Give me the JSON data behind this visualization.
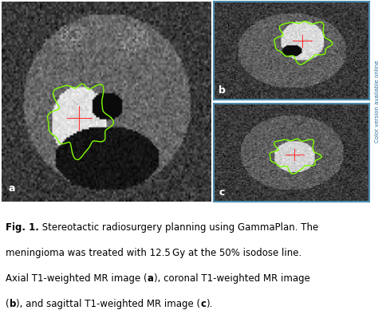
{
  "label_a": "a",
  "label_b": "b",
  "label_c": "c",
  "bg_color": "#ffffff",
  "panel_bg": "#1a1a1a",
  "panel_border_color": "#4a8aab",
  "label_color": "#ffffff",
  "contour_color": "#7fff00",
  "font_size_caption": 8.5,
  "font_size_label": 9,
  "sidebar_text": "Color version available online",
  "sidebar_color": "#2c6e9e",
  "caption_line1": "Fig. 1. Stereotactic radiosurgery planning using GammaPlan. The",
  "caption_line2": "meningioma was treated with 12.5 Gy at the 50% isodose line.",
  "caption_line3": "Axial T1-weighted MR image (a), coronal T1-weighted MR image",
  "caption_line4": "(b), and sagittal T1-weighted MR image (c).",
  "caption_bold_segments": [
    "Fig. 1.",
    "a",
    "b",
    "c"
  ]
}
